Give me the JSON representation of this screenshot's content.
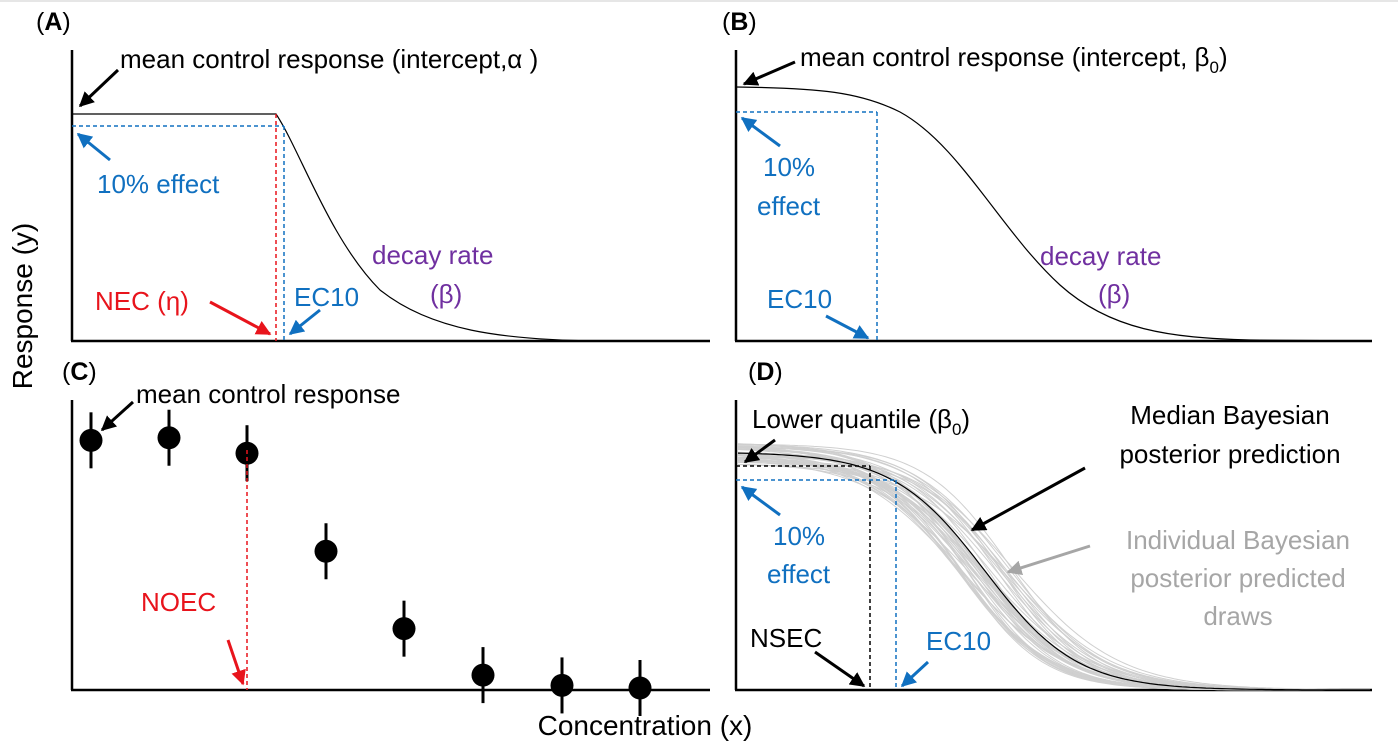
{
  "colors": {
    "blue": "#1070c0",
    "red": "#e8141c",
    "purple": "#7030a0",
    "grey": "#a6a6a6",
    "black": "#000000"
  },
  "figure": {
    "y_axis_label": "Response (y)",
    "x_axis_label": "Concentration (x)"
  },
  "panel_a": {
    "letter": "A",
    "control_label": "mean control response (intercept,α )",
    "effect_label": "10% effect",
    "decay_line1": "decay rate",
    "decay_line2": "(β)",
    "nec_label": "NEC (η)",
    "ec10_label": "EC10"
  },
  "panel_b": {
    "letter": "B",
    "control_label_main": "mean control response (intercept, β",
    "control_label_sub": "0",
    "control_label_end": ")",
    "effect_line1": "10%",
    "effect_line2": "effect",
    "decay_line1": "decay rate",
    "decay_line2": "(β)",
    "ec10_label": "EC10"
  },
  "panel_c": {
    "letter": "C",
    "control_label": "mean control response",
    "noec_label": "NOEC",
    "points_relative_response": [
      0.96,
      0.97,
      0.91,
      0.53,
      0.23,
      0.05,
      0.01,
      0.0
    ]
  },
  "panel_d": {
    "letter": "D",
    "lower_quantile_main": "Lower quantile (β",
    "lower_quantile_sub": "0",
    "lower_quantile_end": ")",
    "median_line1": "Median Bayesian",
    "median_line2": "posterior prediction",
    "individual_line1": "Individual Bayesian",
    "individual_line2": "posterior predicted",
    "individual_line3": "draws",
    "effect_line1": "10%",
    "effect_line2": "effect",
    "nsec_label": "NSEC",
    "ec10_label": "EC10"
  }
}
